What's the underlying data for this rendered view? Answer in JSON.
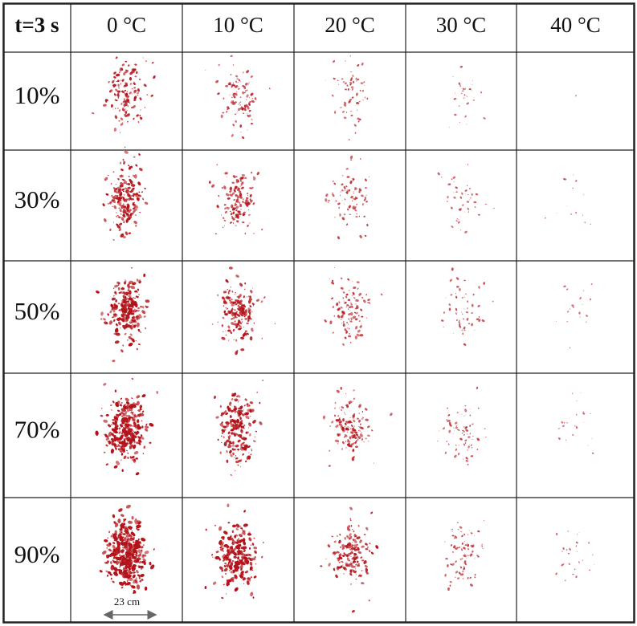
{
  "header": {
    "corner": "t=3 s",
    "columns": [
      "0 °C",
      "10 °C",
      "20 °C",
      "30 °C",
      "40 °C"
    ]
  },
  "rows": [
    "10%",
    "30%",
    "50%",
    "70%",
    "90%"
  ],
  "scale_label": "23 cm"
}
